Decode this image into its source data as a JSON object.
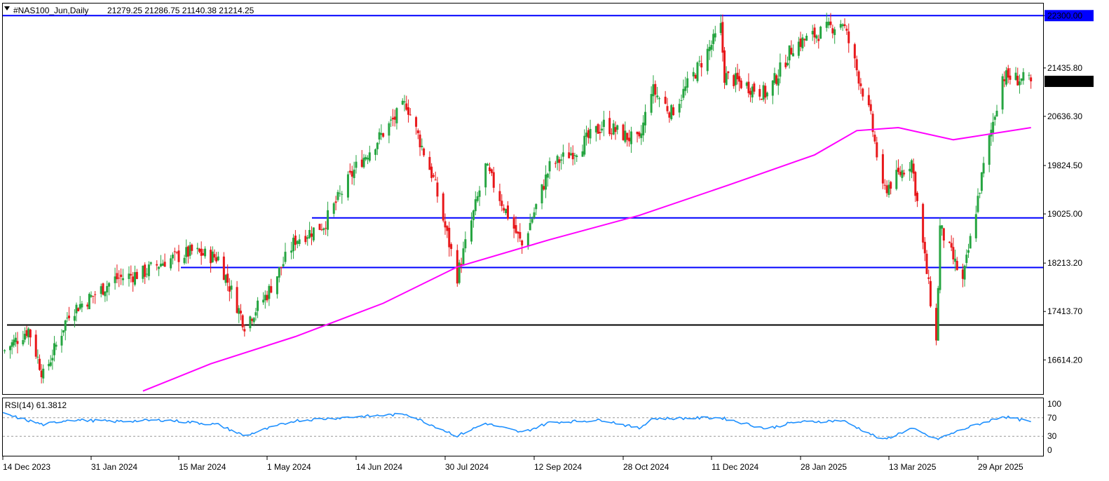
{
  "header": {
    "symbol": "#NAS100_Jun,Daily",
    "ohlc": "21279.25 21286.75 21140.38 21214.25",
    "menu_icon": "triangle-down-icon"
  },
  "chart_data": [
    {
      "type": "candlestick",
      "title": "#NAS100_Jun,Daily",
      "ohlc_last": {
        "open": 21279.25,
        "high": 21286.75,
        "low": 21140.38,
        "close": 21214.25
      },
      "ylim": [
        16050,
        22500
      ],
      "y_ticks": [
        "22300.00",
        "21435.80",
        "20636.30",
        "19824.50",
        "19025.00",
        "18213.20",
        "17413.70",
        "16614.20"
      ],
      "x_ticks": [
        "14 Dec 2023",
        "31 Jan 2024",
        "15 Mar 2024",
        "1 May 2024",
        "14 Jun 2024",
        "30 Jul 2024",
        "12 Sep 2024",
        "28 Oct 2024",
        "11 Dec 2024",
        "28 Jan 2025",
        "13 Mar 2025",
        "29 Apr 2025"
      ],
      "current_price_label": "21214.25",
      "highlight_price_label": "22300.00",
      "horizontal_lines": [
        {
          "price": 22300,
          "color": "#0000ff"
        },
        {
          "price": 18960,
          "color": "#0000ff"
        },
        {
          "price": 18140,
          "color": "#0000ff"
        },
        {
          "price": 17190,
          "color": "#000000"
        }
      ],
      "colors": {
        "up": "#26a541",
        "down": "#e8181b",
        "moving_average": "#ff00ff",
        "rsi": "#1e90ff",
        "label_bg": "#0000ff"
      },
      "close_path": [
        {
          "date": "2023-12-14",
          "close": 16750
        },
        {
          "date": "2023-12-28",
          "close": 17120
        },
        {
          "date": "2024-01-05",
          "close": 16350
        },
        {
          "date": "2024-01-12",
          "close": 16850
        },
        {
          "date": "2024-01-19",
          "close": 17400
        },
        {
          "date": "2024-01-31",
          "close": 17650
        },
        {
          "date": "2024-02-12",
          "close": 17950
        },
        {
          "date": "2024-02-26",
          "close": 18050
        },
        {
          "date": "2024-03-08",
          "close": 18250
        },
        {
          "date": "2024-03-22",
          "close": 18400
        },
        {
          "date": "2024-04-05",
          "close": 18300
        },
        {
          "date": "2024-04-19",
          "close": 17200
        },
        {
          "date": "2024-05-01",
          "close": 17700
        },
        {
          "date": "2024-05-15",
          "close": 18600
        },
        {
          "date": "2024-05-29",
          "close": 18850
        },
        {
          "date": "2024-06-14",
          "close": 19800
        },
        {
          "date": "2024-07-10",
          "close": 20850
        },
        {
          "date": "2024-07-24",
          "close": 19600
        },
        {
          "date": "2024-08-05",
          "close": 18000
        },
        {
          "date": "2024-08-19",
          "close": 19800
        },
        {
          "date": "2024-09-06",
          "close": 18500
        },
        {
          "date": "2024-09-20",
          "close": 19800
        },
        {
          "date": "2024-10-04",
          "close": 20100
        },
        {
          "date": "2024-10-18",
          "close": 20500
        },
        {
          "date": "2024-11-05",
          "close": 20200
        },
        {
          "date": "2024-11-11",
          "close": 21100
        },
        {
          "date": "2024-11-21",
          "close": 20700
        },
        {
          "date": "2024-12-16",
          "close": 22100
        },
        {
          "date": "2024-12-18",
          "close": 21300
        },
        {
          "date": "2025-01-10",
          "close": 21000
        },
        {
          "date": "2025-01-24",
          "close": 21800
        },
        {
          "date": "2025-02-18",
          "close": 22200
        },
        {
          "date": "2025-03-04",
          "close": 20600
        },
        {
          "date": "2025-03-10",
          "close": 19400
        },
        {
          "date": "2025-03-25",
          "close": 19900
        },
        {
          "date": "2025-04-07",
          "close": 16900
        },
        {
          "date": "2025-04-09",
          "close": 18800
        },
        {
          "date": "2025-04-21",
          "close": 17900
        },
        {
          "date": "2025-05-02",
          "close": 19800
        },
        {
          "date": "2025-05-12",
          "close": 21300
        },
        {
          "date": "2025-05-27",
          "close": 21214.25
        }
      ],
      "moving_average_path": [
        {
          "date": "2024-02-26",
          "value": 16100
        },
        {
          "date": "2024-04-01",
          "value": 16550
        },
        {
          "date": "2024-05-15",
          "value": 17000
        },
        {
          "date": "2024-06-28",
          "value": 17550
        },
        {
          "date": "2024-08-05",
          "value": 18150
        },
        {
          "date": "2024-09-20",
          "value": 18600
        },
        {
          "date": "2024-11-05",
          "value": 19000
        },
        {
          "date": "2024-12-20",
          "value": 19500
        },
        {
          "date": "2025-02-04",
          "value": 20000
        },
        {
          "date": "2025-02-25",
          "value": 20400
        },
        {
          "date": "2025-03-18",
          "value": 20450
        },
        {
          "date": "2025-04-16",
          "value": 20250
        },
        {
          "date": "2025-05-27",
          "value": 20450
        }
      ]
    },
    {
      "type": "line",
      "title": "RSI(14) 61.3812",
      "ylim": [
        0,
        100
      ],
      "y_ticks": [
        100,
        70,
        30,
        0
      ],
      "levels": [
        70,
        30
      ],
      "points": [
        {
          "date": "2023-12-14",
          "value": 79
        },
        {
          "date": "2024-01-05",
          "value": 55
        },
        {
          "date": "2024-01-19",
          "value": 66
        },
        {
          "date": "2024-02-12",
          "value": 62
        },
        {
          "date": "2024-03-08",
          "value": 65
        },
        {
          "date": "2024-04-05",
          "value": 55
        },
        {
          "date": "2024-04-19",
          "value": 31
        },
        {
          "date": "2024-05-15",
          "value": 64
        },
        {
          "date": "2024-06-14",
          "value": 72
        },
        {
          "date": "2024-07-10",
          "value": 78
        },
        {
          "date": "2024-08-05",
          "value": 31
        },
        {
          "date": "2024-08-19",
          "value": 58
        },
        {
          "date": "2024-09-06",
          "value": 38
        },
        {
          "date": "2024-09-20",
          "value": 60
        },
        {
          "date": "2024-10-18",
          "value": 65
        },
        {
          "date": "2024-11-05",
          "value": 47
        },
        {
          "date": "2024-11-11",
          "value": 68
        },
        {
          "date": "2024-12-16",
          "value": 70
        },
        {
          "date": "2025-01-10",
          "value": 46
        },
        {
          "date": "2025-01-24",
          "value": 60
        },
        {
          "date": "2025-02-18",
          "value": 64
        },
        {
          "date": "2025-03-10",
          "value": 22
        },
        {
          "date": "2025-03-25",
          "value": 47
        },
        {
          "date": "2025-04-07",
          "value": 23
        },
        {
          "date": "2025-04-21",
          "value": 45
        },
        {
          "date": "2025-05-12",
          "value": 73
        },
        {
          "date": "2025-05-27",
          "value": 61.3812
        }
      ]
    }
  ]
}
